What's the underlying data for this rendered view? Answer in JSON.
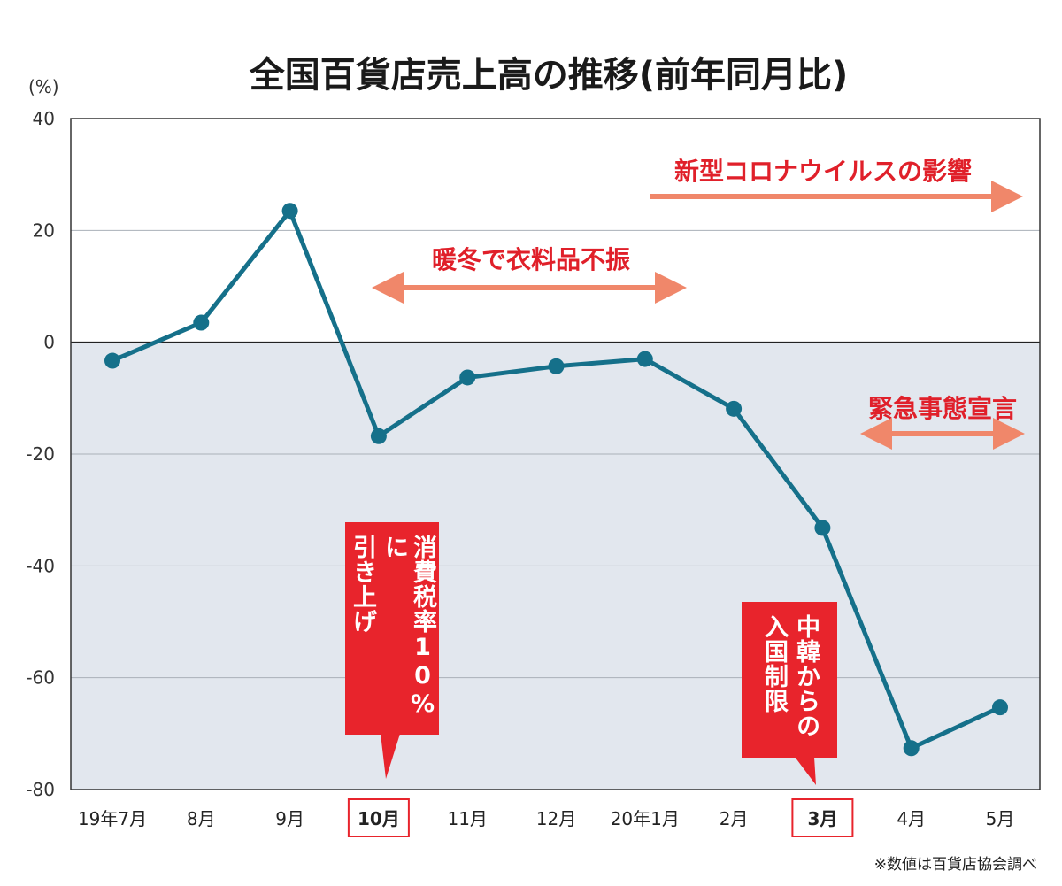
{
  "chart_data": {
    "type": "line",
    "title": "全国百貨店売上高の推移(前年同月比)",
    "ylabel": "(%)",
    "ylim": [
      -80,
      40
    ],
    "yticks": [
      40,
      20,
      0,
      -20,
      -40,
      -60,
      -80
    ],
    "grid": true,
    "categories": [
      "19年7月",
      "8月",
      "9月",
      "10月",
      "11月",
      "12月",
      "20年1月",
      "2月",
      "3月",
      "4月",
      "5月"
    ],
    "highlighted_categories": [
      "10月",
      "3月"
    ],
    "values": [
      -3.3,
      3.5,
      23.5,
      -16.8,
      -6.3,
      -4.3,
      -3.0,
      -11.9,
      -33.2,
      -72.6,
      -65.3
    ],
    "annotations": {
      "corona": "新型コロナウイルスの影響",
      "warm_winter": "暖冬で衣料品不振",
      "emergency": "緊急事態宣言",
      "tax_line1": "消費税率10%に",
      "tax_line2": "引き上げ",
      "entry_line1": "中韓からの",
      "entry_line2": "入国制限"
    },
    "footnote": "※数値は百貨店協会調べ",
    "colors": {
      "line": "#15708a",
      "negative_area": "#e2e7ee",
      "arrow": "#f0876a",
      "annotation_text": "#e0202a",
      "callout": "#e8242c"
    }
  }
}
